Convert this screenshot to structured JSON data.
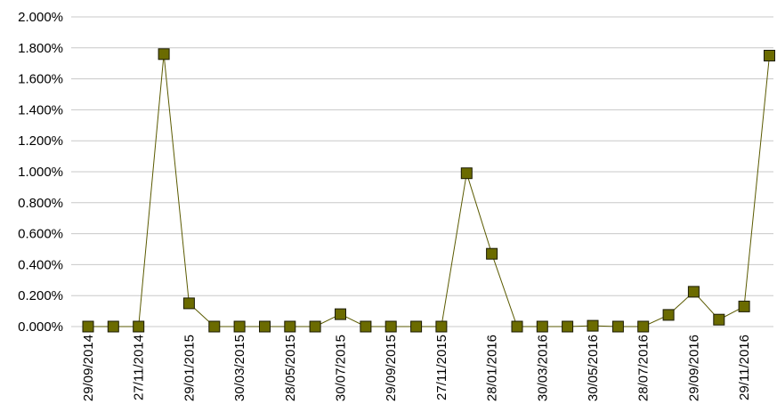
{
  "chart_data": {
    "type": "line",
    "title": "",
    "xlabel": "",
    "ylabel": "",
    "ylim": [
      0,
      2.0
    ],
    "grid": true,
    "legend": "none",
    "y_ticks": [
      "0.000%",
      "0.200%",
      "0.400%",
      "0.600%",
      "0.800%",
      "1.000%",
      "1.200%",
      "1.400%",
      "1.600%",
      "1.800%",
      "2.000%"
    ],
    "x_tick_labels": [
      {
        "label": "29/09/2014",
        "index": 0
      },
      {
        "label": "27/11/2014",
        "index": 2
      },
      {
        "label": "29/01/2015",
        "index": 4
      },
      {
        "label": "30/03/2015",
        "index": 6
      },
      {
        "label": "28/05/2015",
        "index": 8
      },
      {
        "label": "30/07/2015",
        "index": 10
      },
      {
        "label": "29/09/2015",
        "index": 12
      },
      {
        "label": "27/11/2015",
        "index": 14
      },
      {
        "label": "28/01/2016",
        "index": 16
      },
      {
        "label": "30/03/2016",
        "index": 18
      },
      {
        "label": "30/05/2016",
        "index": 20
      },
      {
        "label": "28/07/2016",
        "index": 22
      },
      {
        "label": "29/09/2016",
        "index": 24
      },
      {
        "label": "29/11/2016",
        "index": 26
      }
    ],
    "series": [
      {
        "values": [
          0.0,
          0.0,
          0.0,
          1.76,
          0.15,
          0.0,
          0.0,
          0.0,
          0.0,
          0.0,
          0.08,
          0.0,
          0.0,
          0.0,
          0.0,
          0.99,
          0.47,
          0.0,
          0.0,
          0.0,
          0.005,
          0.0,
          0.0,
          0.075,
          0.225,
          0.045,
          0.13,
          1.75
        ],
        "color": "#5a5a00",
        "marker_fill": "#6b6b00",
        "marker_stroke": "#1a1a00"
      }
    ]
  }
}
